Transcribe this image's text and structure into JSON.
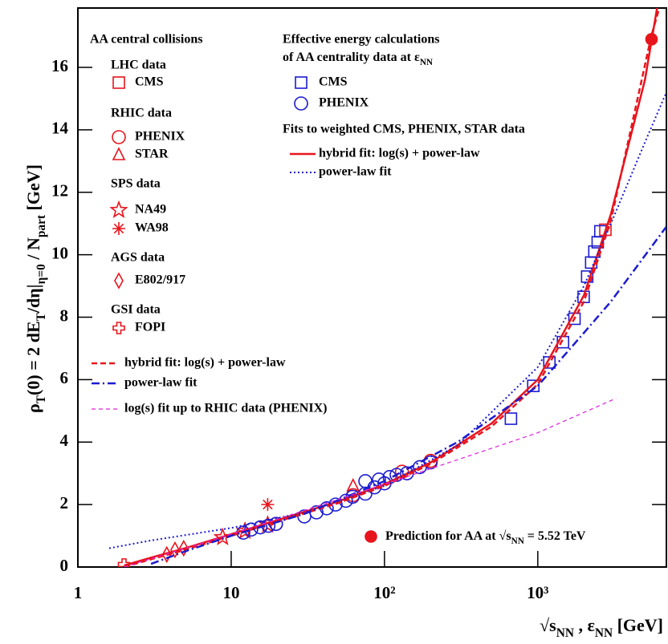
{
  "chart_data": {
    "type": "scatter",
    "log_x": true,
    "xlim": [
      1,
      6900
    ],
    "ylim": [
      0,
      17.9
    ],
    "xticks": [
      1,
      10,
      {
        "value": 100,
        "label": "10²"
      },
      {
        "value": 1000,
        "label": "10³"
      }
    ],
    "yticks": [
      0,
      2,
      4,
      6,
      8,
      10,
      12,
      14,
      16
    ],
    "x_label": [
      "√s",
      {
        "sub": "NN"
      },
      " , ε",
      {
        "sub": "NN"
      },
      "  [GeV]"
    ],
    "y_label": [
      "ρ",
      {
        "sub": "T"
      },
      "(0) = 2 dE",
      {
        "sub": "T"
      },
      "/dη|",
      {
        "sub": "η=0"
      },
      " / N",
      {
        "sub": "part"
      },
      "   [GeV]"
    ],
    "legend_headings": [
      "AA central collisions",
      "LHC data",
      "RHIC data",
      "SPS data",
      "AGS data",
      "GSI data",
      "Effective energy calculations",
      [
        "of AA centrality data at ε",
        {
          "sub": "NN"
        }
      ],
      "Fits to weighted CMS, PHENIX, STAR data"
    ],
    "series": [
      {
        "name": "CMS",
        "marker": "square",
        "color": "#e8141c",
        "x": [
          2760
        ],
        "values": [
          10.8
        ]
      },
      {
        "name": "PHENIX",
        "marker": "circle",
        "color": "#e8141c",
        "x": [
          19.6,
          62.4,
          130,
          200
        ],
        "values": [
          1.38,
          2.3,
          3.05,
          3.4
        ]
      },
      {
        "name": "STAR",
        "marker": "triangle",
        "color": "#e8141c",
        "x": [
          62.4
        ],
        "values": [
          2.6
        ]
      },
      {
        "name": "NA49",
        "marker": "star",
        "color": "#e8141c",
        "x": [
          8.8,
          12.3,
          17.3
        ],
        "values": [
          0.95,
          1.15,
          1.35
        ]
      },
      {
        "name": "WA98",
        "marker": "asterisk",
        "color": "#e8141c",
        "x": [
          17.3
        ],
        "values": [
          2.0
        ]
      },
      {
        "name": "E802/917",
        "marker": "diamond",
        "color": "#e8141c",
        "x": [
          3.8,
          4.3,
          4.9
        ],
        "values": [
          0.4,
          0.55,
          0.6
        ]
      },
      {
        "name": "FOPI",
        "marker": "cross",
        "color": "#e8141c",
        "x": [
          2.0
        ],
        "values": [
          0.08
        ]
      },
      {
        "name": "CMS",
        "marker": "square",
        "color": "#1c1cd0",
        "x": [
          668,
          935,
          1190,
          1460,
          1735,
          1990,
          2100,
          2230,
          2340,
          2460,
          2560
        ],
        "values": [
          4.75,
          5.8,
          6.55,
          7.2,
          7.95,
          8.65,
          9.3,
          9.75,
          10.1,
          10.4,
          10.75
        ]
      },
      {
        "name": "PHENIX",
        "marker": "circle",
        "color": "#1c1cd0",
        "x": [
          12,
          13.5,
          15.5,
          17.5,
          19.6,
          30,
          36,
          42,
          48,
          56,
          62,
          75,
          75,
          86,
          92,
          100,
          108,
          120,
          140,
          170,
          200
        ],
        "values": [
          1.1,
          1.2,
          1.27,
          1.32,
          1.38,
          1.62,
          1.75,
          1.88,
          2.0,
          2.12,
          2.25,
          2.35,
          2.75,
          2.55,
          2.8,
          2.68,
          2.88,
          2.95,
          3.0,
          3.2,
          3.35
        ]
      },
      {
        "name": [
          "Prediction for AA at √s",
          {
            "sub": "NN"
          },
          " = 5.52 TeV"
        ],
        "marker": "dot",
        "color": "#e8141c",
        "x": [
          5520
        ],
        "values": [
          16.9
        ]
      },
      {
        "name": "hybrid fit: log(s) + power-law",
        "line": "solid",
        "color": "#e8141c",
        "x": [
          2,
          3,
          5,
          10,
          20,
          50,
          100,
          200,
          500,
          1000,
          2000,
          3000,
          5000,
          6000
        ],
        "values": [
          0.05,
          0.3,
          0.6,
          1.05,
          1.5,
          2.1,
          2.65,
          3.35,
          4.6,
          6.0,
          8.7,
          11.3,
          15.6,
          17.9
        ]
      },
      {
        "name": "power-law fit",
        "line": "dotted",
        "color": "#1c1cd0",
        "x": [
          1.6,
          3,
          10,
          30,
          100,
          300,
          1000,
          2000,
          3000,
          5000,
          6900
        ],
        "values": [
          0.6,
          0.85,
          1.25,
          1.75,
          2.6,
          3.9,
          6.4,
          9.0,
          11.0,
          13.6,
          15.2
        ]
      },
      {
        "name": "hybrid fit: log(s) + power-law",
        "line": "dashed",
        "color": "#e8141c",
        "x": [
          2,
          3,
          5,
          10,
          20,
          50,
          100,
          200,
          500,
          1000,
          2000,
          3000,
          5500,
          6200
        ],
        "values": [
          0.0,
          0.25,
          0.55,
          1.0,
          1.45,
          2.05,
          2.6,
          3.3,
          4.5,
          5.85,
          8.5,
          11.1,
          17.0,
          17.9
        ]
      },
      {
        "name": "power-law fit",
        "line": "dashdot",
        "color": "#1c1cd0",
        "x": [
          3,
          5,
          10,
          30,
          100,
          300,
          1000,
          2000,
          3000,
          6900
        ],
        "values": [
          0.1,
          0.5,
          1.0,
          1.7,
          2.75,
          4.0,
          5.8,
          7.5,
          8.5,
          10.9
        ]
      },
      {
        "name": "log(s) fit up to RHIC data (PHENIX)",
        "line": "thin-dashed",
        "color": "#e020e0",
        "x": [
          2,
          10,
          100,
          1000,
          3240
        ],
        "values": [
          0.0,
          1.05,
          2.65,
          4.3,
          5.4
        ]
      }
    ]
  }
}
